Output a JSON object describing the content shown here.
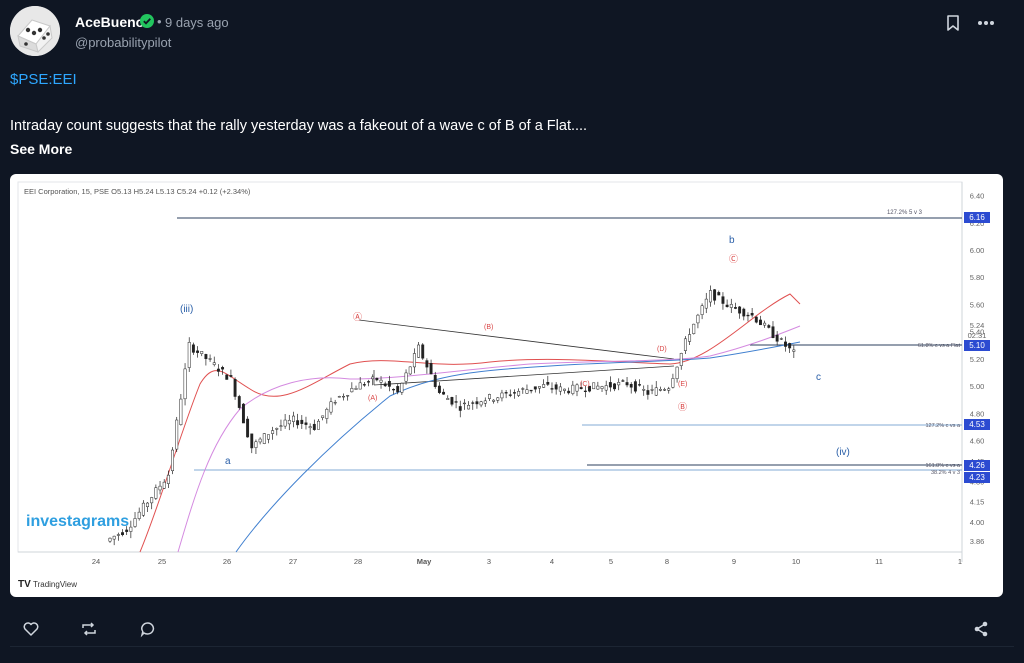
{
  "post": {
    "author": "AceBueno",
    "time_sep": "•",
    "time": "9 days ago",
    "handle": "@probabilitypilot",
    "ticker": "$PSE:EEI",
    "text": "Intraday count suggests that the rally yesterday was a fakeout of a wave c of B of a Flat....",
    "see_more": "See More"
  },
  "colors": {
    "background": "#0f1623",
    "accent": "#2ea7ff",
    "verified": "#22c55e"
  },
  "icons": [
    "verified-icon",
    "bookmark-icon",
    "more-icon",
    "like-icon",
    "repost-icon",
    "comment-icon",
    "share-icon"
  ],
  "chart": {
    "header": "EEI Corporation, 15, PSE  O5.13  H5.24  L5.13  C5.24  +0.12 (+2.34%)",
    "watermark": "investagrams",
    "tradingview": "TradingView",
    "wave_labels": [
      "(iii)",
      "a",
      "Ⓐ",
      "(A)",
      "(B)",
      "(C)",
      "(D)",
      "(E)",
      "Ⓑ",
      "b",
      "Ⓒ",
      "c",
      "(iv)"
    ],
    "line_labels": {
      "l127": "127.2% 5 v 3",
      "l61": "61.8% c vs a Flat",
      "l127c": "127.2% c vs a",
      "l161": "161.8% c vs a",
      "l38": "38.2% 4 v 3"
    },
    "price_tags": {
      "p616": "6.16",
      "p510": "5.10",
      "p453": "4.53",
      "p426": "4.26",
      "p423": "4.23",
      "p524": "5.24",
      "countdown": "02:31"
    }
  },
  "chart_data": {
    "type": "candlestick",
    "title": "EEI Corporation, 15, PSE",
    "ohlc_last": {
      "open": 5.13,
      "high": 5.24,
      "low": 5.13,
      "close": 5.24,
      "change": 0.12,
      "change_pct": 2.34
    },
    "y_ticks": [
      6.4,
      6.2,
      6.0,
      5.8,
      5.6,
      5.4,
      5.2,
      5.0,
      4.8,
      4.6,
      4.45,
      4.3,
      4.15,
      4.0,
      3.86
    ],
    "x_ticks": [
      "24",
      "25",
      "26",
      "27",
      "28",
      "May",
      "3",
      "4",
      "5",
      "8",
      "9",
      "10",
      "11",
      "1"
    ],
    "ylim": [
      3.78,
      6.5
    ],
    "levels": [
      {
        "label": "127.2% 5 v 3",
        "value": 6.16
      },
      {
        "label": "61.8% c vs a Flat",
        "value": 5.1
      },
      {
        "label": "127.2% c vs a",
        "value": 4.53
      },
      {
        "label": "161.8% c vs a",
        "value": 4.26
      },
      {
        "label": "38.2% 4 v 3",
        "value": 4.23
      }
    ],
    "close_series": [
      3.86,
      3.95,
      4.15,
      4.35,
      5.3,
      5.18,
      5.05,
      4.55,
      4.68,
      4.75,
      4.7,
      4.9,
      5.0,
      5.05,
      4.95,
      5.28,
      4.95,
      4.85,
      4.9,
      4.93,
      4.97,
      5.0,
      4.97,
      4.99,
      5.0,
      5.02,
      4.95,
      5.0,
      5.4,
      5.68,
      5.58,
      5.52,
      5.38,
      5.24
    ]
  }
}
